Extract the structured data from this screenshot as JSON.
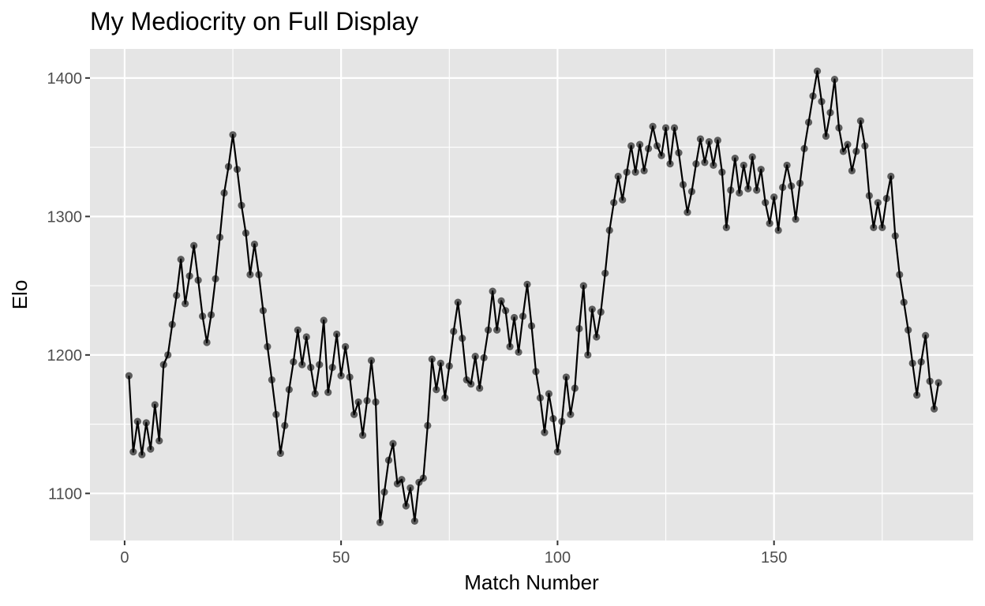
{
  "chart_data": {
    "type": "line",
    "title": "My Mediocrity on Full Display",
    "xlabel": "Match Number",
    "ylabel": "Elo",
    "xlim": [
      -8,
      196
    ],
    "ylim": [
      1066,
      1421
    ],
    "x_ticks": [
      0,
      50,
      100,
      150
    ],
    "x_tick_labels": [
      "0",
      "50",
      "100",
      "150"
    ],
    "y_ticks": [
      1100,
      1200,
      1300,
      1400
    ],
    "y_tick_labels": [
      "1100",
      "1200",
      "1300",
      "1400"
    ],
    "grid": true,
    "legend": "none",
    "markers": true,
    "colors": {
      "panel": "#e5e5e5",
      "grid": "#ffffff",
      "line": "#000000",
      "point": "#000000",
      "point_opacity": 0.6
    },
    "series": [
      {
        "values": [
          [
            1,
            1185
          ],
          [
            2,
            1130
          ],
          [
            3,
            1152
          ],
          [
            4,
            1128
          ],
          [
            5,
            1151
          ],
          [
            6,
            1132
          ],
          [
            7,
            1164
          ],
          [
            8,
            1138
          ],
          [
            9,
            1193
          ],
          [
            10,
            1200
          ],
          [
            11,
            1222
          ],
          [
            12,
            1243
          ],
          [
            13,
            1269
          ],
          [
            14,
            1237
          ],
          [
            15,
            1257
          ],
          [
            16,
            1279
          ],
          [
            17,
            1254
          ],
          [
            18,
            1228
          ],
          [
            19,
            1209
          ],
          [
            20,
            1229
          ],
          [
            21,
            1255
          ],
          [
            22,
            1285
          ],
          [
            23,
            1317
          ],
          [
            24,
            1336
          ],
          [
            25,
            1359
          ],
          [
            26,
            1334
          ],
          [
            27,
            1308
          ],
          [
            28,
            1288
          ],
          [
            29,
            1258
          ],
          [
            30,
            1280
          ],
          [
            31,
            1258
          ],
          [
            32,
            1232
          ],
          [
            33,
            1206
          ],
          [
            34,
            1182
          ],
          [
            35,
            1157
          ],
          [
            36,
            1129
          ],
          [
            37,
            1149
          ],
          [
            38,
            1175
          ],
          [
            39,
            1195
          ],
          [
            40,
            1218
          ],
          [
            41,
            1193
          ],
          [
            42,
            1213
          ],
          [
            43,
            1191
          ],
          [
            44,
            1172
          ],
          [
            45,
            1193
          ],
          [
            46,
            1225
          ],
          [
            47,
            1173
          ],
          [
            48,
            1191
          ],
          [
            49,
            1215
          ],
          [
            50,
            1185
          ],
          [
            51,
            1206
          ],
          [
            52,
            1184
          ],
          [
            53,
            1157
          ],
          [
            54,
            1166
          ],
          [
            55,
            1142
          ],
          [
            56,
            1167
          ],
          [
            57,
            1196
          ],
          [
            58,
            1166
          ],
          [
            59,
            1079
          ],
          [
            60,
            1101
          ],
          [
            61,
            1124
          ],
          [
            62,
            1136
          ],
          [
            63,
            1107
          ],
          [
            64,
            1110
          ],
          [
            65,
            1091
          ],
          [
            66,
            1104
          ],
          [
            67,
            1080
          ],
          [
            68,
            1108
          ],
          [
            69,
            1111
          ],
          [
            70,
            1149
          ],
          [
            71,
            1197
          ],
          [
            72,
            1175
          ],
          [
            73,
            1194
          ],
          [
            74,
            1169
          ],
          [
            75,
            1192
          ],
          [
            76,
            1217
          ],
          [
            77,
            1238
          ],
          [
            78,
            1212
          ],
          [
            79,
            1182
          ],
          [
            80,
            1179
          ],
          [
            81,
            1199
          ],
          [
            82,
            1176
          ],
          [
            83,
            1198
          ],
          [
            84,
            1218
          ],
          [
            85,
            1246
          ],
          [
            86,
            1218
          ],
          [
            87,
            1239
          ],
          [
            88,
            1232
          ],
          [
            89,
            1206
          ],
          [
            90,
            1227
          ],
          [
            91,
            1202
          ],
          [
            92,
            1228
          ],
          [
            93,
            1251
          ],
          [
            94,
            1221
          ],
          [
            95,
            1188
          ],
          [
            96,
            1169
          ],
          [
            97,
            1144
          ],
          [
            98,
            1172
          ],
          [
            99,
            1154
          ],
          [
            100,
            1130
          ],
          [
            101,
            1152
          ],
          [
            102,
            1184
          ],
          [
            103,
            1157
          ],
          [
            104,
            1176
          ],
          [
            105,
            1219
          ],
          [
            106,
            1250
          ],
          [
            107,
            1200
          ],
          [
            108,
            1233
          ],
          [
            109,
            1213
          ],
          [
            110,
            1231
          ],
          [
            111,
            1259
          ],
          [
            112,
            1290
          ],
          [
            113,
            1310
          ],
          [
            114,
            1329
          ],
          [
            115,
            1312
          ],
          [
            116,
            1332
          ],
          [
            117,
            1351
          ],
          [
            118,
            1332
          ],
          [
            119,
            1352
          ],
          [
            120,
            1333
          ],
          [
            121,
            1349
          ],
          [
            122,
            1365
          ],
          [
            123,
            1351
          ],
          [
            124,
            1344
          ],
          [
            125,
            1364
          ],
          [
            126,
            1338
          ],
          [
            127,
            1364
          ],
          [
            128,
            1346
          ],
          [
            129,
            1323
          ],
          [
            130,
            1303
          ],
          [
            131,
            1318
          ],
          [
            132,
            1338
          ],
          [
            133,
            1356
          ],
          [
            134,
            1339
          ],
          [
            135,
            1354
          ],
          [
            136,
            1337
          ],
          [
            137,
            1355
          ],
          [
            138,
            1332
          ],
          [
            139,
            1292
          ],
          [
            140,
            1319
          ],
          [
            141,
            1342
          ],
          [
            142,
            1317
          ],
          [
            143,
            1337
          ],
          [
            144,
            1320
          ],
          [
            145,
            1343
          ],
          [
            146,
            1319
          ],
          [
            147,
            1334
          ],
          [
            148,
            1310
          ],
          [
            149,
            1295
          ],
          [
            150,
            1314
          ],
          [
            151,
            1290
          ],
          [
            152,
            1321
          ],
          [
            153,
            1337
          ],
          [
            154,
            1322
          ],
          [
            155,
            1298
          ],
          [
            156,
            1324
          ],
          [
            157,
            1349
          ],
          [
            158,
            1368
          ],
          [
            159,
            1387
          ],
          [
            160,
            1405
          ],
          [
            161,
            1383
          ],
          [
            162,
            1358
          ],
          [
            163,
            1375
          ],
          [
            164,
            1399
          ],
          [
            165,
            1364
          ],
          [
            166,
            1347
          ],
          [
            167,
            1352
          ],
          [
            168,
            1333
          ],
          [
            169,
            1347
          ],
          [
            170,
            1369
          ],
          [
            171,
            1351
          ],
          [
            172,
            1315
          ],
          [
            173,
            1292
          ],
          [
            174,
            1310
          ],
          [
            175,
            1292
          ],
          [
            176,
            1313
          ],
          [
            177,
            1329
          ],
          [
            178,
            1286
          ],
          [
            179,
            1258
          ],
          [
            180,
            1238
          ],
          [
            181,
            1218
          ],
          [
            182,
            1194
          ],
          [
            183,
            1171
          ],
          [
            184,
            1195
          ],
          [
            185,
            1214
          ],
          [
            186,
            1181
          ],
          [
            187,
            1161
          ],
          [
            188,
            1180
          ]
        ]
      }
    ]
  }
}
